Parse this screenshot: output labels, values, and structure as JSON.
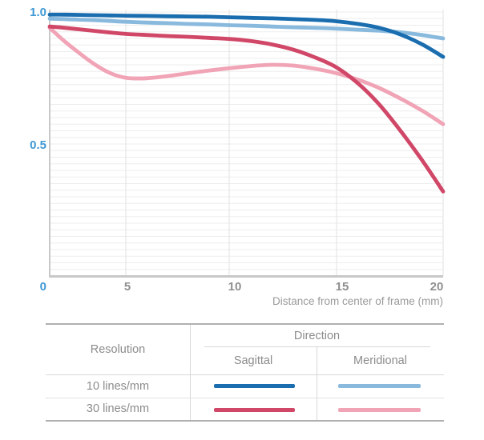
{
  "chart_data": {
    "type": "line",
    "title": "",
    "xlabel": "Distance from center of frame (mm)",
    "ylabel": "",
    "xlim": [
      0,
      20
    ],
    "ylim": [
      0,
      1.0
    ],
    "x_ticks": [
      0,
      5,
      10,
      15,
      20
    ],
    "x_tick_labels": [
      "5",
      "10",
      "15",
      "20"
    ],
    "y_tick_labels": [
      "1.0",
      "0.5",
      "0"
    ],
    "origin_label": "0",
    "grid": "fine horizontal lines every 0.025; vertical lines at x ticks; grid on",
    "legend_position": "table below chart",
    "x": [
      0,
      1,
      2,
      3,
      4,
      5,
      6,
      7,
      8,
      9,
      10,
      11,
      12,
      13,
      14,
      15,
      16,
      17,
      18,
      19,
      20
    ],
    "series": [
      {
        "name": "10 lines/mm Sagittal",
        "color": "#1a6dae",
        "values": [
          0.99,
          0.99,
          0.989,
          0.988,
          0.987,
          0.986,
          0.985,
          0.984,
          0.983,
          0.982,
          0.98,
          0.978,
          0.976,
          0.973,
          0.97,
          0.965,
          0.955,
          0.94,
          0.915,
          0.878,
          0.83
        ]
      },
      {
        "name": "10 lines/mm Meridional",
        "color": "#89bade",
        "values": [
          0.975,
          0.973,
          0.971,
          0.969,
          0.966,
          0.963,
          0.96,
          0.958,
          0.955,
          0.953,
          0.95,
          0.948,
          0.945,
          0.942,
          0.94,
          0.937,
          0.933,
          0.929,
          0.923,
          0.913,
          0.9
        ]
      },
      {
        "name": "30 lines/mm Sagittal",
        "color": "#d04768",
        "values": [
          0.945,
          0.94,
          0.934,
          0.928,
          0.922,
          0.917,
          0.913,
          0.909,
          0.906,
          0.902,
          0.898,
          0.89,
          0.877,
          0.857,
          0.828,
          0.79,
          0.73,
          0.65,
          0.55,
          0.44,
          0.32
        ]
      },
      {
        "name": "30 lines/mm Meridional",
        "color": "#f0a4b6",
        "values": [
          0.94,
          0.888,
          0.842,
          0.8,
          0.768,
          0.751,
          0.749,
          0.757,
          0.768,
          0.778,
          0.787,
          0.795,
          0.8,
          0.797,
          0.785,
          0.768,
          0.744,
          0.712,
          0.672,
          0.627,
          0.575
        ]
      }
    ]
  },
  "legend_table": {
    "col_resolution": "Resolution",
    "col_direction": "Direction",
    "col_sagittal": "Sagittal",
    "col_meridional": "Meridional",
    "rows": [
      {
        "resolution": "10 lines/mm",
        "sagittal_color": "#1a6dae",
        "meridional_color": "#89bade"
      },
      {
        "resolution": "30 lines/mm",
        "sagittal_color": "#d04768",
        "meridional_color": "#f0a4b6"
      }
    ]
  },
  "colors": {
    "y_tick": "#3f99d4",
    "x_tick": "#8f8f8f",
    "axis_title": "#9a9a9a",
    "axis_line": "#c8c8c8",
    "grid_horizontal": "#ededed",
    "grid_vertical": "#e2e2e2",
    "table_border": "#b0b0b0",
    "table_line": "#d8d8d8",
    "table_row_line": "#e2e2e2",
    "table_text": "#8c8c8c"
  }
}
